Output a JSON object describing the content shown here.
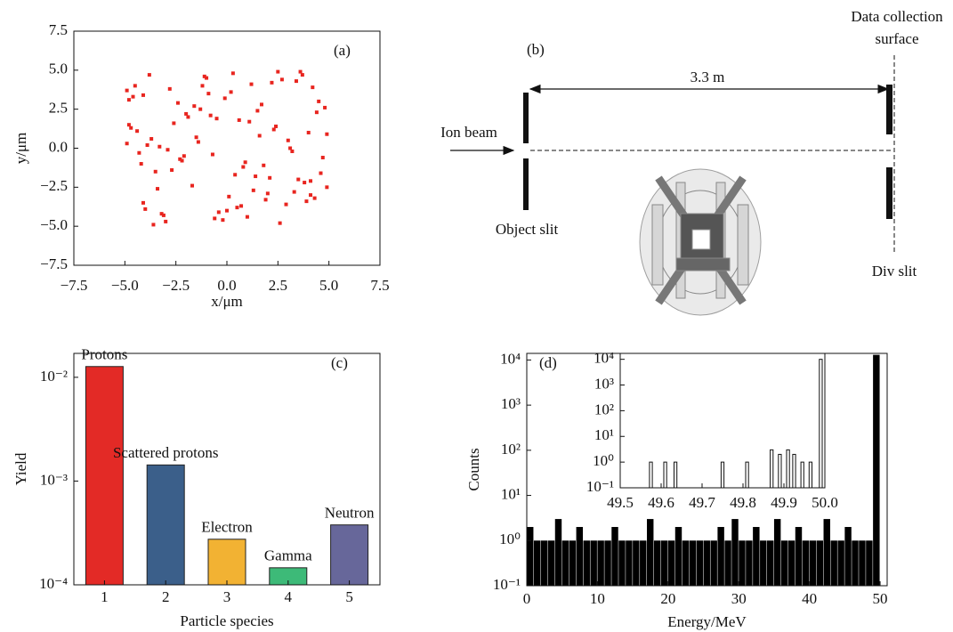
{
  "chart_data": [
    {
      "type": "scatter",
      "panel_label": "(a)",
      "xlabel": "x/μm",
      "ylabel": "y/μm",
      "color": "#e8251f",
      "xlim": [
        -7.5,
        7.5
      ],
      "ylim": [
        -7.5,
        7.5
      ],
      "xticks": [
        {
          "value": -7.5,
          "label": "−7.5"
        },
        {
          "value": -5,
          "label": "−5.0"
        },
        {
          "value": -2.5,
          "label": "−2.5"
        },
        {
          "value": 0,
          "label": "0.0"
        },
        {
          "value": 2.5,
          "label": "2.5"
        },
        {
          "value": 5,
          "label": "5.0"
        },
        {
          "value": 7.5,
          "label": "7.5"
        }
      ],
      "yticks": [
        {
          "value": -7.5,
          "label": "−7.5"
        },
        {
          "value": -5,
          "label": "−5.0"
        },
        {
          "value": -2.5,
          "label": "−2.5"
        },
        {
          "value": 0,
          "label": "0.0"
        },
        {
          "value": 2.5,
          "label": "2.5"
        },
        {
          "value": 5,
          "label": "5.0"
        },
        {
          "value": 7.5,
          "label": "7.5"
        }
      ],
      "x": [
        -4.8,
        -3.2,
        -1.5,
        0.3,
        2.1,
        4.4,
        -4.1,
        -2.6,
        -0.7,
        1.2,
        3.3,
        4.9,
        -4.9,
        -3.6,
        -1.9,
        0.8,
        2.7,
        4.1,
        -4.4,
        -2.2,
        -0.2,
        1.7,
        3.8,
        -3.9,
        -1.1,
        0.5,
        2.4,
        4.6,
        -4.6,
        -2.9,
        -1.3,
        1.0,
        3.0,
        4.2,
        -3.4,
        -0.5,
        1.9,
        3.6,
        -4.2,
        -2.4,
        0.1,
        2.2,
        4.7,
        -4.7,
        -3.0,
        -0.9,
        1.4,
        3.1,
        -3.8,
        -1.7,
        0.6,
        2.9,
        4.5,
        -4.3,
        -2.0,
        -0.4,
        1.6,
        3.5,
        -4.5,
        -2.7,
        -1.0,
        0.9,
        2.6,
        4.8,
        -3.5,
        -1.4,
        0.2,
        2.0,
        4.0,
        -4.0,
        -2.3,
        -0.1,
        1.3,
        3.4,
        -4.8,
        -3.1,
        -0.8,
        1.8,
        3.9,
        -3.7,
        -1.6,
        0.4,
        2.5,
        4.3,
        -4.9,
        -2.8,
        -0.6,
        1.1,
        3.2,
        4.9,
        -3.3,
        -1.2,
        0.7,
        2.3,
        4.1,
        -4.1,
        -2.1,
        0.0,
        1.5,
        3.7
      ],
      "y": [
        3.1,
        -4.2,
        0.7,
        4.8,
        -1.9,
        2.3,
        -3.5,
        1.6,
        -0.4,
        4.1,
        -2.8,
        0.9,
        3.7,
        -4.9,
        2.0,
        -1.2,
        4.4,
        -3.0,
        1.1,
        -0.8,
        -4.6,
        2.8,
        -2.2,
        0.2,
        4.6,
        -3.8,
        1.4,
        -1.6,
        3.3,
        -0.1,
        2.5,
        -4.4,
        0.5,
        3.9,
        -2.6,
        1.9,
        -3.3,
        4.9,
        -1.0,
        2.9,
        -3.1,
        4.2,
        -0.6,
        1.3,
        -4.7,
        3.5,
        -1.8,
        0.0,
        4.7,
        -2.4,
        1.8,
        -3.6,
        3.0,
        -0.3,
        2.2,
        -4.1,
        0.8,
        -2.0,
        4.0,
        -1.4,
        4.5,
        -0.9,
        -4.8,
        2.6,
        -1.5,
        0.4,
        3.6,
        -2.9,
        1.0,
        -3.9,
        -0.7,
        3.2,
        -2.7,
        4.3,
        1.5,
        -4.3,
        2.1,
        -1.1,
        -3.4,
        0.6,
        2.7,
        -1.7,
        4.9,
        -3.2,
        0.3,
        3.8,
        -4.5,
        1.7,
        -0.2,
        -2.5,
        0.1,
        4.0,
        -3.7,
        1.2,
        -2.1,
        3.4,
        -0.5,
        -4.0,
        2.4,
        4.7
      ]
    },
    {
      "type": "bar",
      "panel_label": "(c)",
      "xlabel": "Particle species",
      "ylabel": "Yield",
      "log_y": true,
      "categories": [
        "1",
        "2",
        "3",
        "4",
        "5"
      ],
      "values": [
        0.0127,
        0.00143,
        0.000275,
        0.000146,
        0.000378
      ],
      "bar_labels": [
        "Protons",
        "Scattered protons",
        "Electron",
        "Gamma",
        "Neutron"
      ],
      "colors": [
        "#e32a26",
        "#3b5f8a",
        "#f2b233",
        "#3dba78",
        "#67679a"
      ],
      "ylim": [
        0.0001,
        0.017
      ],
      "yticks": [
        {
          "value": 0.0001,
          "label": "10⁻⁴"
        },
        {
          "value": 0.001,
          "label": "10⁻³"
        },
        {
          "value": 0.01,
          "label": "10⁻²"
        }
      ]
    },
    {
      "type": "histogram",
      "panel_label": "(d)",
      "xlabel": "Energy/MeV",
      "ylabel": "Counts",
      "log_y": true,
      "color": "#000000",
      "bins": [
        0,
        1,
        2,
        3,
        4,
        5,
        6,
        7,
        8,
        9,
        10,
        11,
        12,
        13,
        14,
        15,
        16,
        17,
        18,
        19,
        20,
        21,
        22,
        23,
        24,
        25,
        26,
        27,
        28,
        29,
        30,
        31,
        32,
        33,
        34,
        35,
        36,
        37,
        38,
        39,
        40,
        41,
        42,
        43,
        44,
        45,
        46,
        47,
        48,
        49,
        50
      ],
      "values": [
        2,
        1,
        1,
        1,
        3,
        1,
        1,
        2,
        1,
        1,
        1,
        1,
        2,
        1,
        1,
        1,
        1,
        3,
        1,
        1,
        1,
        2,
        1,
        1,
        1,
        1,
        1,
        2,
        1,
        3,
        1,
        1,
        2,
        1,
        1,
        3,
        1,
        1,
        2,
        1,
        1,
        1,
        3,
        1,
        1,
        2,
        1,
        1,
        1,
        13000
      ],
      "xlim": [
        0,
        51
      ],
      "xticks": [
        0,
        10,
        20,
        30,
        40,
        50
      ],
      "ylim": [
        0.1,
        14000
      ],
      "yticks": [
        {
          "value": 0.1,
          "label": "10⁻¹"
        },
        {
          "value": 1,
          "label": "10⁰"
        },
        {
          "value": 10,
          "label": "10¹"
        },
        {
          "value": 100,
          "label": "10²"
        },
        {
          "value": 1000,
          "label": "10³"
        },
        {
          "value": 10000,
          "label": "10⁴"
        }
      ],
      "inset": {
        "type": "bar",
        "log_y": true,
        "bar_width": 0.007,
        "x": [
          49.575,
          49.61,
          49.635,
          49.75,
          49.81,
          49.87,
          49.89,
          49.91,
          49.925,
          49.945,
          49.965,
          49.99
        ],
        "values": [
          1,
          1,
          1,
          1,
          1,
          3,
          2,
          3,
          2,
          1,
          1,
          10000
        ],
        "xlim": [
          49.5,
          50.0
        ],
        "xticks": [
          49.5,
          49.6,
          49.7,
          49.8,
          49.9,
          {
            "value": 50.0,
            "label": "50.0"
          }
        ],
        "ylim": [
          0.1,
          17000
        ],
        "yticks": [
          {
            "value": 0.1,
            "label": "10⁻¹"
          },
          {
            "value": 1,
            "label": "10⁰"
          },
          {
            "value": 10,
            "label": "10¹"
          },
          {
            "value": 100,
            "label": "10²"
          },
          {
            "value": 1000,
            "label": "10³"
          },
          {
            "value": 10000,
            "label": "10⁴"
          }
        ]
      }
    }
  ],
  "diagram": {
    "panel_label": "(b)",
    "collection_label": [
      "Data collection",
      "surface"
    ],
    "distance": "3.3 m",
    "beam_label": "Ion beam",
    "object_slit": "Object slit",
    "div_slit": "Div slit"
  }
}
